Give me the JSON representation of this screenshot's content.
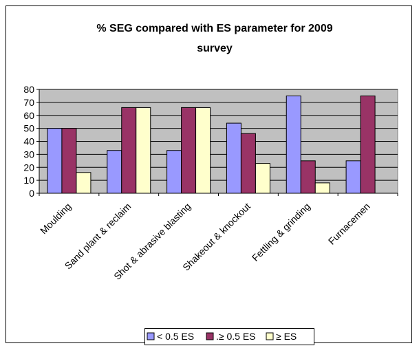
{
  "chart_data": {
    "type": "bar",
    "title_lines": [
      "% SEG compared with ES parameter for 2009",
      "survey"
    ],
    "categories": [
      "Moulding",
      "Sand plant & reclaim",
      "Shot & abrasive blasting",
      "Shakeout & knockout",
      "Fettling & grinding",
      "Furnacemen"
    ],
    "series": [
      {
        "name": "< 0.5 ES",
        "color": "#9999ff",
        "values": [
          50,
          33,
          33,
          54,
          75,
          25
        ]
      },
      {
        "name": ".≥ 0.5 ES",
        "color": "#993366",
        "values": [
          50,
          66,
          66,
          46,
          25,
          75
        ]
      },
      {
        "name": "≥ ES",
        "color": "#ffffcc",
        "values": [
          16,
          66,
          66,
          23,
          8,
          0
        ]
      }
    ],
    "yticks": [
      0,
      10,
      20,
      30,
      40,
      50,
      60,
      70,
      80
    ],
    "ylim": [
      0,
      80
    ],
    "grid": true,
    "plot_background": "#c0c0c0",
    "legend_position": "bottom"
  }
}
